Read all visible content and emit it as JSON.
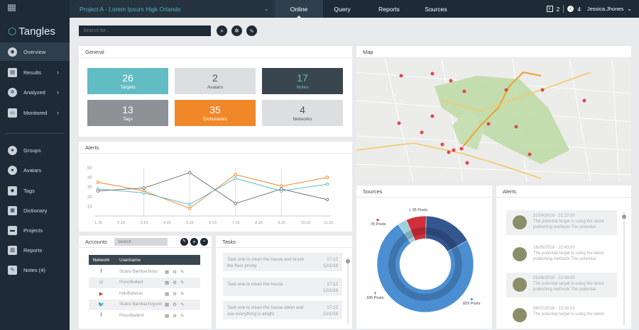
{
  "project": {
    "title": "Project A - Lorem Ipsum Higk Orlando"
  },
  "tabs": [
    {
      "label": "Online"
    },
    {
      "label": "Query"
    },
    {
      "label": "Reports"
    },
    {
      "label": "Sources"
    }
  ],
  "topbar": {
    "notes_count": "2",
    "checks_count": "4",
    "user": "Jessica.Jhones"
  },
  "sidebar": {
    "logo": "Tangles",
    "items": [
      {
        "label": "Overview"
      },
      {
        "label": "Results"
      },
      {
        "label": "Analyzed"
      },
      {
        "label": "Monitored"
      },
      {
        "label": "Groups"
      },
      {
        "label": "Avatars"
      },
      {
        "label": "Tags"
      },
      {
        "label": "Dictionary"
      },
      {
        "label": "Projects"
      },
      {
        "label": "Reports"
      },
      {
        "label": "Notes (4)"
      }
    ]
  },
  "search": {
    "placeholder": "Search for..."
  },
  "general": {
    "title": "General",
    "stats": [
      {
        "value": "26",
        "label": "Targets",
        "color": "#62bcc4"
      },
      {
        "value": "2",
        "label": "Avatars",
        "color": "#dcdedf"
      },
      {
        "value": "17",
        "label": "Notes",
        "color": "#3a464f"
      },
      {
        "value": "13",
        "label": "Tags",
        "color": "#8e9296"
      },
      {
        "value": "35",
        "label": "Dictionaries",
        "color": "#f0882a"
      },
      {
        "value": "4",
        "label": "Networks",
        "color": "#dcdedf"
      }
    ]
  },
  "map": {
    "title": "Map"
  },
  "alerts_chart": {
    "title": "Alerts"
  },
  "chart_data": {
    "type": "line",
    "categories": [
      "1.16",
      "2.16",
      "3.16",
      "4.16",
      "5.16",
      "6.16",
      "7.16",
      "8.16",
      "9.16",
      "10.16",
      "11.16"
    ],
    "ylim": [
      0,
      50
    ],
    "yticks": [
      "50",
      "40",
      "30",
      "20",
      "10"
    ],
    "series": [
      {
        "color": "#f0882a",
        "values": [
          35,
          null,
          26,
          null,
          8,
          null,
          43,
          null,
          31,
          null,
          40
        ]
      },
      {
        "color": "#62bcc4",
        "values": [
          28,
          null,
          24,
          null,
          12,
          null,
          39,
          null,
          26,
          null,
          33
        ]
      },
      {
        "color": "#777777",
        "values": [
          26,
          null,
          29,
          null,
          45,
          null,
          13,
          null,
          28,
          null,
          17
        ]
      }
    ]
  },
  "sources": {
    "title": "Sources",
    "labels": [
      {
        "text": "35 Posts"
      },
      {
        "text": "76 Posts"
      },
      {
        "text": "186 Posts"
      },
      {
        "text": "829 Posts"
      }
    ],
    "slices": [
      {
        "value": 35,
        "color": "#9dd0dd"
      },
      {
        "value": 76,
        "color": "#d32f3c"
      },
      {
        "value": 186,
        "color": "#34568f"
      },
      {
        "value": 829,
        "color": "#4b8fd2"
      }
    ]
  },
  "alerts": {
    "title": "Alerts",
    "items": [
      {
        "date": "21/04/2016 - 21:22:00",
        "text": "The potential target is using the latest publishing methods The potential"
      },
      {
        "date": "16/05/2016 - 22:43:00",
        "text": "The potential target is using the latest publishing methods The potential"
      },
      {
        "date": "05/06/2016 - 22:49:00",
        "text": "The potential target is using the latest publishing methods The potential"
      },
      {
        "date": "08/07/2016 - 13:30:03",
        "text": "The potential target is using the latest"
      }
    ]
  },
  "accounts": {
    "title": "Accounts",
    "search_placeholder": "Search",
    "col_network": "Network",
    "col_username": "Username",
    "rows": [
      {
        "net": "f",
        "net_color": "#2c4a8e",
        "user": "Stubio Bambachoyo"
      },
      {
        "net": "✉",
        "net_color": "#9ab0c0",
        "user": "PressBallant"
      },
      {
        "net": "▶",
        "net_color": "#d32f3c",
        "user": "IndoBalleras"
      },
      {
        "net": "🐦",
        "net_color": "#3aa0e0",
        "user": "Stubio Bambachoyono"
      },
      {
        "net": "f",
        "net_color": "#2c4a8e",
        "user": "PressBadent"
      }
    ]
  },
  "tasks": {
    "title": "Tasks",
    "items": [
      {
        "text": "Task one to clean the house and brush the floor prooly",
        "time": "17:12",
        "date": "12/1/16"
      },
      {
        "text": "Task one to clean the house",
        "time": "17:12",
        "date": "12/1/16"
      },
      {
        "text": "Task one to clean the house down and see everything is alright",
        "time": "17:12",
        "date": "12/1/16"
      }
    ]
  }
}
